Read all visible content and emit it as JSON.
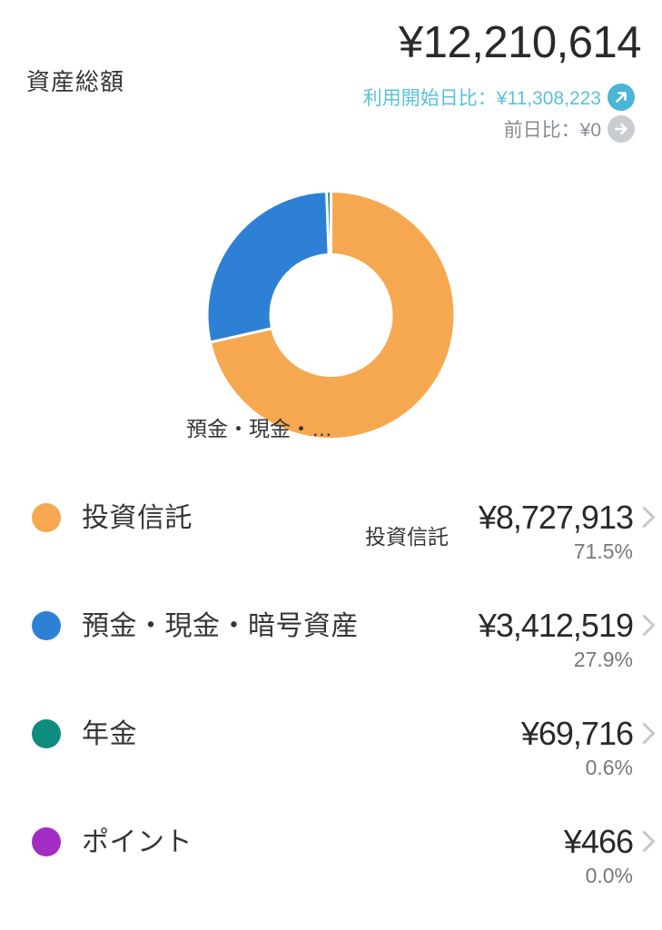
{
  "theme": {
    "orange": "#F6A850",
    "blue": "#2E80D5",
    "teal": "#0E8C80",
    "purple": "#A32CC4",
    "light_blue": "#58C1DC",
    "badge_blue": "#4AB5D6",
    "badge_gray": "#C9CDD2",
    "text_dark": "#28292B",
    "text_label": "#333538",
    "text_gray": "#898E93",
    "text_pct": "#76787B",
    "chevron": "#C6C8CC"
  },
  "header": {
    "title": "資産総額",
    "total": "¥12,210,614",
    "since_start_label": "利用開始日比：¥11,308,223",
    "prev_day_label": "前日比：¥0"
  },
  "chart_data": {
    "type": "pie",
    "donut": true,
    "title": "",
    "categories": [
      "投資信託",
      "預金・現金・暗号資産",
      "年金",
      "ポイント"
    ],
    "values": [
      8727913,
      3412519,
      69716,
      466
    ],
    "percent_labels": [
      "71.5%",
      "27.9%",
      "0.6%",
      "0.0%"
    ],
    "colors": [
      "#F6A850",
      "#2E80D5",
      "#0E8C80",
      "#A32CC4"
    ],
    "start_angle_deg": 0,
    "direction": "clockwise",
    "slice_labels": {
      "trust": "投資信託",
      "deposits_truncated": "預金・現金・…"
    }
  },
  "assets": [
    {
      "label": "投資信託",
      "value": "¥8,727,913",
      "percent": "71.5%",
      "color": "#F6A850"
    },
    {
      "label": "預金・現金・暗号資産",
      "value": "¥3,412,519",
      "percent": "27.9%",
      "color": "#2E80D5"
    },
    {
      "label": "年金",
      "value": "¥69,716",
      "percent": "0.6%",
      "color": "#0E8C80"
    },
    {
      "label": "ポイント",
      "value": "¥466",
      "percent": "0.0%",
      "color": "#A32CC4"
    }
  ]
}
